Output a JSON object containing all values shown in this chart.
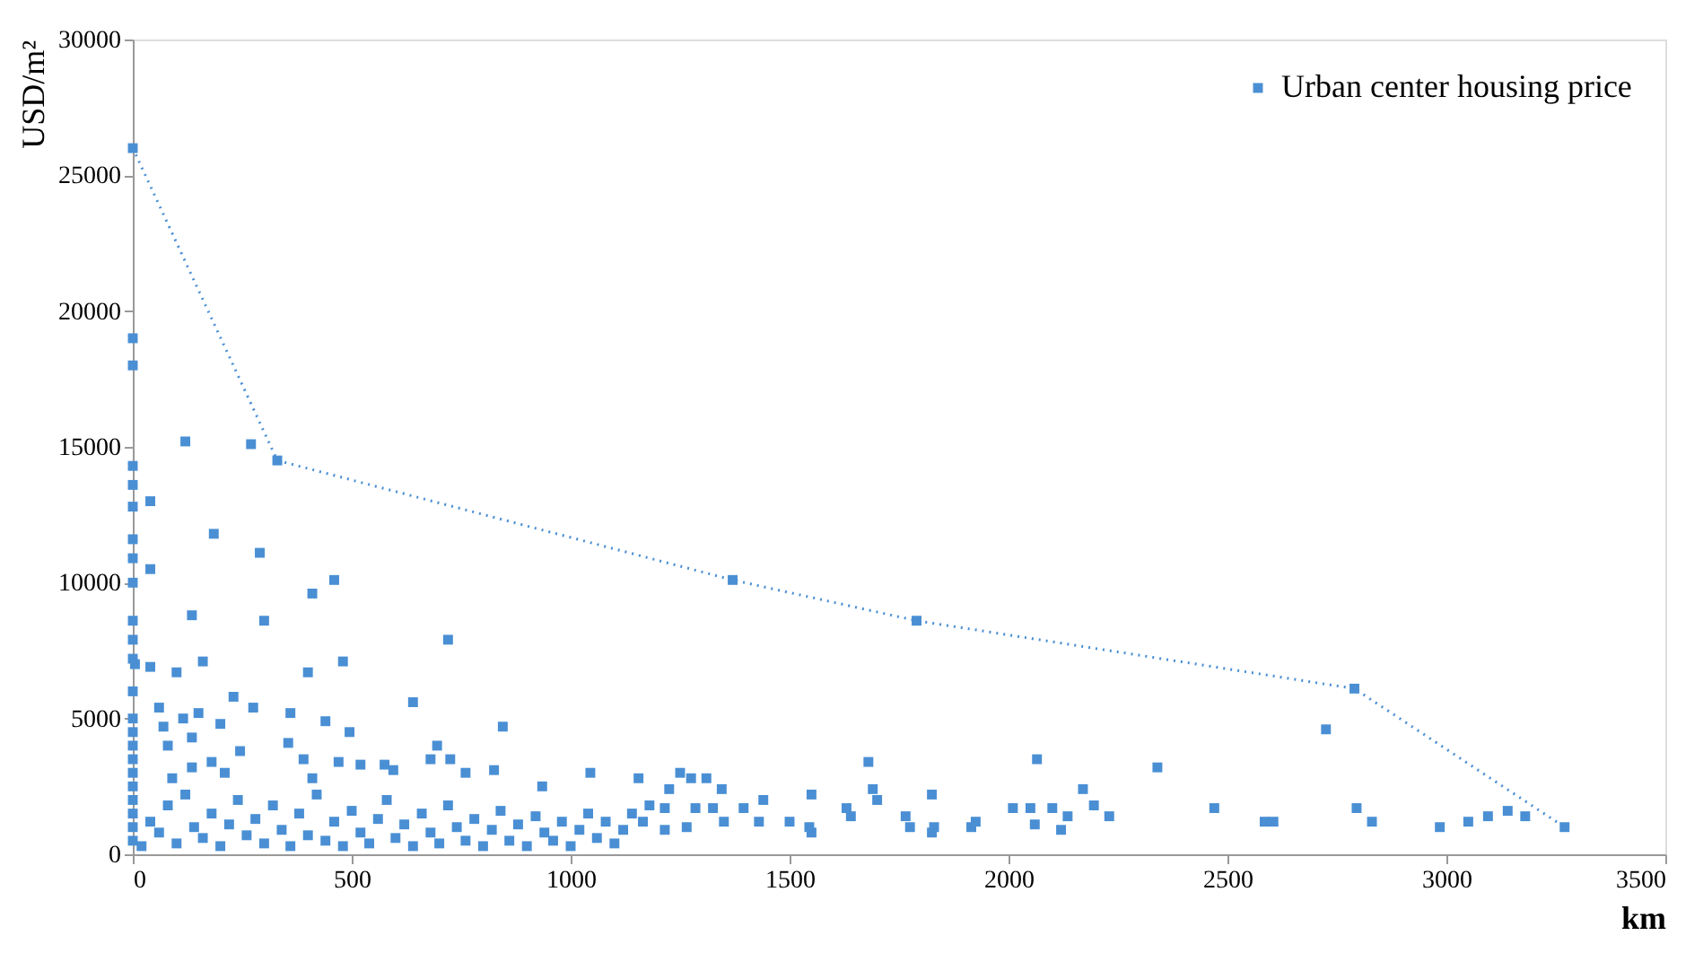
{
  "chart_data": {
    "type": "scatter",
    "xlabel": "km",
    "ylabel": "USD/m²",
    "xlim": [
      0,
      3500
    ],
    "xticks": [
      0,
      500,
      1000,
      1500,
      2000,
      2500,
      3000,
      3500
    ],
    "ylim": [
      0,
      30000
    ],
    "yticks": [
      0,
      5000,
      10000,
      15000,
      20000,
      25000,
      30000
    ],
    "grid": false,
    "legend": "top right",
    "series": [
      {
        "name": "Urban center housing price",
        "marker": "square",
        "color": "#4a8fd4",
        "x": [
          0,
          0,
          0,
          120,
          270,
          330,
          0,
          0,
          0,
          0,
          0,
          0,
          0,
          0,
          0,
          40,
          185,
          290,
          40,
          460,
          410,
          135,
          300,
          720,
          160,
          480,
          40,
          100,
          400,
          640,
          230,
          60,
          275,
          360,
          150,
          115,
          440,
          845,
          495,
          200,
          70,
          135,
          80,
          355,
          695,
          245,
          520,
          575,
          390,
          470,
          180,
          680,
          725,
          210,
          410,
          825,
          760,
          135,
          1045,
          1155,
          935,
          90,
          595,
          1370,
          1790,
          2790,
          2725,
          2065,
          1680,
          2340,
          1250,
          1275,
          1310,
          1345,
          1225,
          1440,
          1550,
          1690,
          1700,
          1825,
          2170,
          2195,
          2230,
          2100,
          2135,
          2010,
          2050,
          2060,
          2120,
          1925,
          1915,
          1765,
          1775,
          1830,
          1825,
          1630,
          1640,
          1500,
          1545,
          1550,
          1430,
          1395,
          1350,
          1325,
          1285,
          1215,
          1180,
          1265,
          1215,
          1165,
          2470,
          2585,
          2605,
          2795,
          2830,
          2985,
          3050,
          3095,
          3140,
          3180,
          3270,
          0,
          0,
          0,
          0,
          0,
          0,
          0,
          0,
          0,
          0,
          0,
          5,
          20,
          40,
          60,
          80,
          100,
          120,
          140,
          160,
          180,
          200,
          220,
          240,
          260,
          280,
          300,
          320,
          340,
          360,
          380,
          400,
          420,
          440,
          460,
          480,
          500,
          520,
          540,
          560,
          580,
          600,
          620,
          640,
          660,
          680,
          700,
          720,
          740,
          760,
          780,
          800,
          820,
          840,
          860,
          880,
          900,
          920,
          940,
          960,
          980,
          1000,
          1020,
          1040,
          1060,
          1080,
          1100,
          1120,
          1140
        ],
        "values": [
          26000,
          19000,
          18000,
          15200,
          15100,
          14500,
          14300,
          13600,
          12800,
          11600,
          10900,
          10000,
          8600,
          7900,
          7200,
          13000,
          11800,
          11100,
          10500,
          10100,
          9600,
          8800,
          8600,
          7900,
          7100,
          7100,
          6900,
          6700,
          6700,
          5600,
          5800,
          5400,
          5400,
          5200,
          5200,
          5000,
          4900,
          4700,
          4500,
          4800,
          4700,
          4300,
          4000,
          4100,
          4000,
          3800,
          3300,
          3300,
          3500,
          3400,
          3400,
          3500,
          3500,
          3000,
          2800,
          3100,
          3000,
          3200,
          3000,
          2800,
          2500,
          2800,
          3100,
          10100,
          8600,
          6100,
          4600,
          3500,
          3400,
          3200,
          3000,
          2800,
          2800,
          2400,
          2400,
          2000,
          2200,
          2400,
          2000,
          2200,
          2400,
          1800,
          1400,
          1700,
          1400,
          1700,
          1700,
          1100,
          900,
          1200,
          1000,
          1400,
          1000,
          1000,
          800,
          1700,
          1400,
          1200,
          1000,
          800,
          1200,
          1700,
          1200,
          1700,
          1700,
          1700,
          1800,
          1000,
          900,
          1200,
          1700,
          1200,
          1200,
          1700,
          1200,
          1000,
          1200,
          1400,
          1600,
          1400,
          1000,
          500,
          1000,
          1500,
          2000,
          2500,
          3000,
          3500,
          4000,
          4500,
          5000,
          6000,
          7000,
          300,
          1200,
          800,
          1800,
          400,
          2200,
          1000,
          600,
          1500,
          300,
          1100,
          2000,
          700,
          1300,
          400,
          1800,
          900,
          300,
          1500,
          700,
          2200,
          500,
          1200,
          300,
          1600,
          800,
          400,
          1300,
          2000,
          600,
          1100,
          300,
          1500,
          800,
          400,
          1800,
          1000,
          500,
          1300,
          300,
          900,
          1600,
          500,
          1100,
          300,
          1400,
          800,
          500,
          1200,
          300,
          900,
          1500,
          600,
          1200,
          400,
          900,
          1500
        ]
      },
      {
        "type": "line",
        "line_style": "dotted",
        "color": "#4a8fd4",
        "x": [
          0,
          330,
          1370,
          1790,
          2790,
          3270
        ],
        "values": [
          26000,
          14500,
          10100,
          8600,
          6100,
          1000
        ]
      }
    ]
  }
}
